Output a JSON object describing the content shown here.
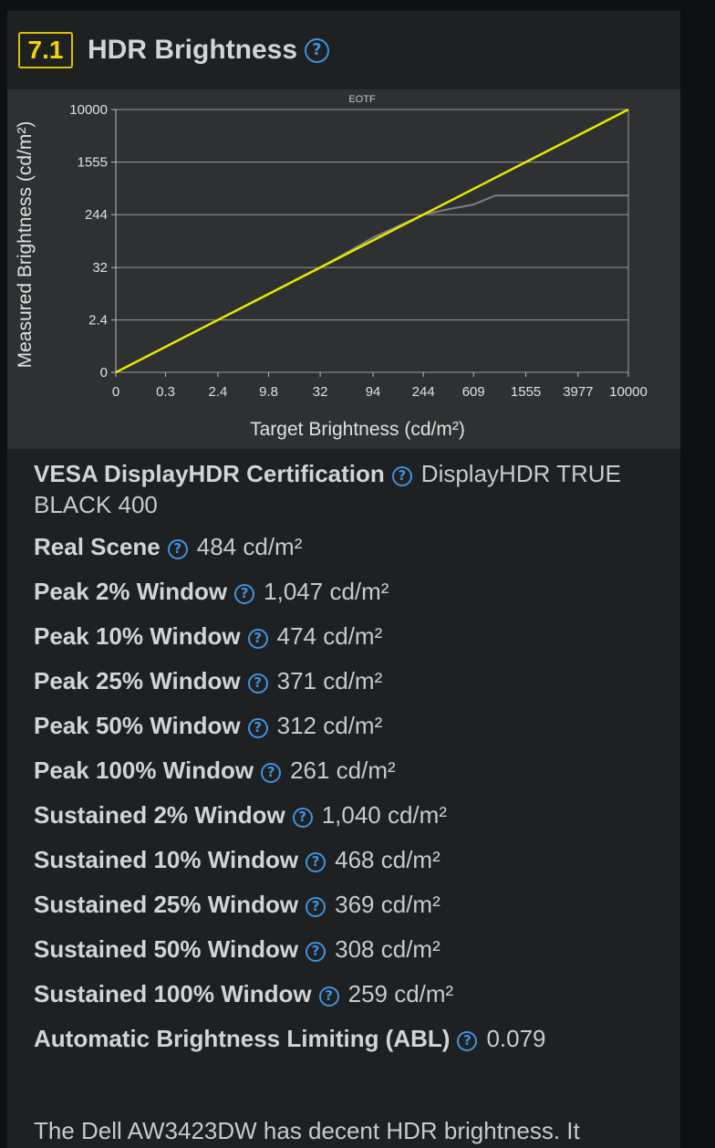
{
  "section": {
    "number": "7.1",
    "title": "HDR Brightness",
    "help_glyph": "?"
  },
  "chart_data": {
    "type": "line",
    "title": "EOTF",
    "xlabel": "Target Brightness (cd/m²)",
    "ylabel": "Measured Brightness (cd/m²)",
    "x_ticks": [
      "0",
      "0.3",
      "2.4",
      "9.8",
      "32",
      "94",
      "244",
      "609",
      "1555",
      "3977",
      "10000"
    ],
    "y_ticks": [
      "0",
      "2.4",
      "32",
      "244",
      "1555",
      "10000"
    ],
    "grid": "horizontal",
    "series": [
      {
        "name": "",
        "color": "#e6e600",
        "x": [
          "0",
          "10000"
        ],
        "y": [
          "0",
          "10000"
        ]
      },
      {
        "name": "",
        "color": "#808080",
        "x": [
          "0",
          "2.4",
          "32",
          "94",
          "244",
          "400",
          "609",
          "900",
          "10000"
        ],
        "y": [
          "0",
          "2.4",
          "32",
          "105",
          "244",
          "300",
          "350",
          "484",
          "484"
        ]
      }
    ]
  },
  "specs": [
    {
      "label": "VESA DisplayHDR Certification",
      "value": "DisplayHDR TRUE"
    },
    {
      "label": "Real Scene",
      "value": "484 cd/m²"
    },
    {
      "label": "Peak 2% Window",
      "value": "1,047 cd/m²"
    },
    {
      "label": "Peak 10% Window",
      "value": "474 cd/m²"
    },
    {
      "label": "Peak 25% Window",
      "value": "371 cd/m²"
    },
    {
      "label": "Peak 50% Window",
      "value": "312 cd/m²"
    },
    {
      "label": "Peak 100% Window",
      "value": "261 cd/m²"
    },
    {
      "label": "Sustained 2% Window",
      "value": "1,040 cd/m²"
    },
    {
      "label": "Sustained 10% Window",
      "value": "468 cd/m²"
    },
    {
      "label": "Sustained 25% Window",
      "value": "369 cd/m²"
    },
    {
      "label": "Sustained 50% Window",
      "value": "308 cd/m²"
    },
    {
      "label": "Sustained 100% Window",
      "value": "259 cd/m²"
    },
    {
      "label": "Automatic Brightness Limiting (ABL)",
      "value": "0.079"
    }
  ],
  "spec_first_continuation": "BLACK 400",
  "summary": "The Dell AW3423DW has decent HDR brightness. It"
}
